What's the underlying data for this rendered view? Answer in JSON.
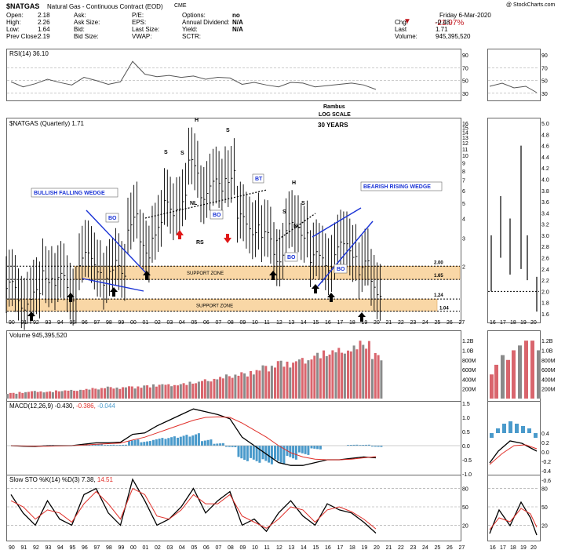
{
  "header": {
    "symbol": "$NATGAS",
    "description": "Natural Gas - Continuous Contract (EOD)",
    "exchange": "CME",
    "credit": "@ StockCharts.com",
    "date": "Friday  6-Mar-2020",
    "change_pct": "-21.97%",
    "fields_col1": [
      {
        "label": "Open:",
        "value": "2.18"
      },
      {
        "label": "High:",
        "value": "2.26"
      },
      {
        "label": "Low:",
        "value": "1.64"
      },
      {
        "label": "Prev Close:",
        "value": "2.19"
      }
    ],
    "fields_col2": [
      "Ask:",
      "Ask Size:",
      "Bid:",
      "Bid Size:"
    ],
    "fields_col3": [
      "P/E:",
      "EPS:",
      "Last Size:",
      "VWAP:"
    ],
    "fields_col4": [
      {
        "label": "Options:",
        "value": "no"
      },
      {
        "label": "Annual Dividend:",
        "value": "N/A"
      },
      {
        "label": "Yield:",
        "value": "N/A"
      },
      {
        "label": "SCTR:",
        "value": ""
      }
    ],
    "fields_col5": [
      {
        "label": "Chg:",
        "value": "-0.48"
      },
      {
        "label": "Last",
        "value": "1.71"
      },
      {
        "label": "Volume:",
        "value": "945,395,520"
      }
    ]
  },
  "panel_labels": {
    "rsi": "RSI(14) 36.10",
    "price": "$NATGAS (Quarterly) 1.71",
    "volume": "Volume 945,395,520",
    "macd_prefix": "MACD(12,26,9) -0.430,",
    "macd_signal": "-0.386,",
    "macd_hist": "-0.044",
    "sto_prefix": "Slow STO %K(14) %D(3) 7.38,",
    "sto_d": "14.51"
  },
  "annotations": {
    "rambus": "Rambus",
    "log_scale": "LOG SCALE",
    "years": "30 YEARS",
    "bullish_wedge": "BULLISH FALLING WEDGE",
    "bearish_wedge": "BEARISH RISING WEDGE",
    "support_zone_1": "SUPPORT ZONE",
    "support_zone_2": "SUPPORT ZONE",
    "bo1": "BO",
    "bo2": "BO",
    "bo3": "BO",
    "bo4": "BO",
    "bt": "BT",
    "nl1": "NL",
    "nl2": "NL",
    "rs": "RS",
    "h1": "H",
    "h2": "H",
    "s1": "S",
    "s2": "S",
    "s3": "S",
    "s4": "S",
    "s5": "S",
    "lvl_200": "2.00",
    "lvl_165": "1.65",
    "lvl_124": "1.24",
    "lvl_104": "1.04"
  },
  "colors": {
    "support_fill": "#f9d7a6",
    "wedge_line": "#1a33d6",
    "volume_up": "#d9656d",
    "volume_down": "#8a8a8a",
    "macd_hist": "#4a9acb",
    "signal": "#e0302a",
    "neg_change": "#c0141c"
  },
  "chart_data": {
    "type": "line",
    "title": "$NATGAS (Quarterly)",
    "x_ticks": [
      "90",
      "91",
      "92",
      "93",
      "94",
      "95",
      "96",
      "97",
      "98",
      "99",
      "00",
      "01",
      "02",
      "03",
      "04",
      "05",
      "06",
      "07",
      "08",
      "09",
      "10",
      "11",
      "12",
      "13",
      "14",
      "15",
      "16",
      "17",
      "18",
      "19",
      "20",
      "21",
      "22",
      "23",
      "24",
      "25",
      "26",
      "27"
    ],
    "yscale": "log",
    "y_ticks": [
      "16",
      "15",
      "14",
      "13",
      "12",
      "11",
      "10",
      "9",
      "8",
      "7",
      "6",
      "5",
      "4",
      "3",
      "2"
    ],
    "ylim": [
      1.0,
      16.0
    ],
    "series": [
      {
        "name": "$NATGAS",
        "x": [
          1990,
          1991,
          1992,
          1993,
          1994,
          1995,
          1996,
          1997,
          1998,
          1999,
          2000,
          2001,
          2002,
          2003,
          2004,
          2005,
          2006,
          2007,
          2008,
          2009,
          2010,
          2011,
          2012,
          2013,
          2014,
          2015,
          2016,
          2017,
          2018,
          2019,
          2020
        ],
        "values": [
          1.7,
          1.4,
          1.5,
          2.1,
          1.9,
          1.6,
          2.6,
          2.4,
          2.0,
          2.3,
          4.5,
          3.0,
          4.0,
          5.5,
          6.0,
          10.0,
          7.0,
          7.5,
          9.0,
          4.5,
          4.2,
          3.5,
          2.8,
          4.0,
          4.0,
          2.6,
          2.5,
          3.0,
          3.0,
          2.3,
          1.71
        ]
      }
    ],
    "support_levels": [
      2.0,
      1.65,
      1.24,
      1.04
    ],
    "side_chart": {
      "y_ticks": [
        "5.0",
        "4.8",
        "4.6",
        "4.4",
        "4.2",
        "4.0",
        "3.8",
        "3.6",
        "3.4",
        "3.2",
        "3.0",
        "2.8",
        "2.6",
        "2.4",
        "2.2",
        "2.0",
        "1.8",
        "1.6"
      ],
      "x_ticks": [
        "16",
        "17",
        "18",
        "19",
        "20"
      ]
    },
    "rsi": {
      "name": "RSI(14)",
      "last": 36.1,
      "y_ticks": [
        "90",
        "70",
        "50",
        "30"
      ],
      "values": [
        48,
        40,
        45,
        52,
        47,
        43,
        55,
        50,
        44,
        48,
        80,
        60,
        56,
        58,
        55,
        57,
        52,
        55,
        54,
        44,
        47,
        43,
        40,
        47,
        46,
        40,
        42,
        44,
        46,
        43,
        36
      ]
    },
    "volume": {
      "last": 945395520,
      "y_ticks": [
        "1.2B",
        "1.0B",
        "800M",
        "600M",
        "400M",
        "200M"
      ],
      "values": [
        0.12,
        0.14,
        0.16,
        0.15,
        0.17,
        0.18,
        0.2,
        0.22,
        0.25,
        0.24,
        0.26,
        0.28,
        0.3,
        0.3,
        0.32,
        0.35,
        0.4,
        0.45,
        0.5,
        0.55,
        0.6,
        0.7,
        0.8,
        0.78,
        0.85,
        0.95,
        1.0,
        1.05,
        1.1,
        1.2,
        0.95
      ]
    },
    "macd": {
      "last": -0.43,
      "signal_last": -0.386,
      "hist_last": -0.044,
      "y_ticks": [
        "1.5",
        "1.0",
        "0.5",
        "0.0",
        "-0.5",
        "-1.0"
      ],
      "values": [
        0.0,
        -0.02,
        -0.03,
        0.0,
        0.0,
        0.0,
        0.05,
        0.1,
        0.1,
        0.12,
        0.4,
        0.45,
        0.7,
        0.9,
        1.1,
        1.3,
        1.2,
        1.1,
        0.95,
        0.3,
        0.0,
        -0.3,
        -0.6,
        -0.7,
        -0.7,
        -0.6,
        -0.5,
        -0.5,
        -0.45,
        -0.4,
        -0.43
      ],
      "signal": [
        0.0,
        -0.01,
        -0.02,
        -0.02,
        -0.01,
        0.0,
        0.02,
        0.05,
        0.07,
        0.09,
        0.2,
        0.3,
        0.45,
        0.6,
        0.75,
        0.9,
        1.0,
        1.02,
        1.0,
        0.8,
        0.55,
        0.3,
        0.0,
        -0.25,
        -0.4,
        -0.48,
        -0.5,
        -0.5,
        -0.48,
        -0.43,
        -0.39
      ]
    },
    "slow_sto": {
      "k_last": 7.38,
      "d_last": 14.51,
      "y_ticks": [
        "80",
        "50",
        "20"
      ],
      "k": [
        70,
        40,
        20,
        60,
        30,
        20,
        70,
        80,
        40,
        20,
        95,
        60,
        20,
        30,
        50,
        80,
        40,
        60,
        75,
        20,
        30,
        10,
        40,
        60,
        35,
        20,
        55,
        45,
        40,
        25,
        7
      ],
      "d": [
        60,
        50,
        30,
        45,
        40,
        25,
        55,
        75,
        55,
        30,
        80,
        70,
        35,
        30,
        45,
        70,
        55,
        55,
        70,
        35,
        25,
        15,
        30,
        50,
        45,
        25,
        45,
        50,
        42,
        30,
        14
      ]
    }
  }
}
